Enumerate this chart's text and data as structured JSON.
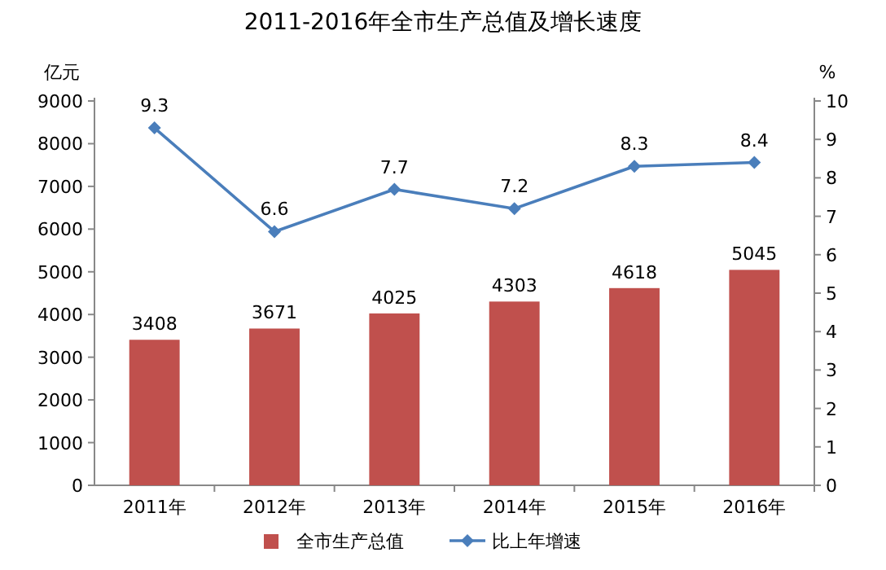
{
  "chart_data": {
    "type": "bar",
    "title": "2011-2016年全市生产总值及增长速度",
    "ylabel": "亿元",
    "y2label": "%",
    "categories": [
      "2011年",
      "2012年",
      "2013年",
      "2014年",
      "2015年",
      "2016年"
    ],
    "series": [
      {
        "name": "全市生产总值",
        "color": "#c0504d",
        "values": [
          3408,
          3671,
          4025,
          4303,
          4618,
          5045
        ]
      },
      {
        "name": "比上年增速",
        "type": "line",
        "axis": "y2",
        "color": "#4a7ebb",
        "marker": "diamond",
        "values": [
          9.3,
          6.6,
          7.7,
          7.2,
          8.3,
          8.4
        ]
      }
    ],
    "ylim": [
      0,
      9000
    ],
    "yticks": [
      0,
      1000,
      2000,
      3000,
      4000,
      5000,
      6000,
      7000,
      8000,
      9000
    ],
    "y2lim": [
      0,
      10
    ],
    "y2ticks": [
      0,
      1,
      2,
      3,
      4,
      5,
      6,
      7,
      8,
      9,
      10
    ],
    "data_labels": true,
    "legend": "bottom"
  }
}
